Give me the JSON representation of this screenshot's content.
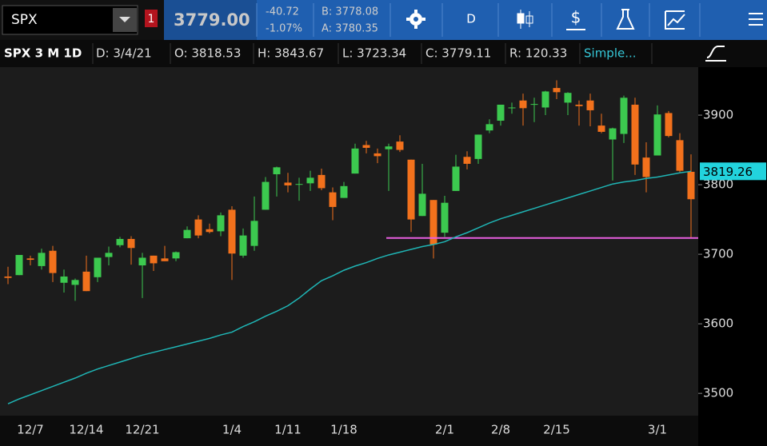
{
  "toolbar": {
    "symbol": "SPX",
    "alert_count": "1",
    "last": "3779.00",
    "change": "-40.72",
    "change_pct": "-1.07%",
    "bid": "B: 3778.08",
    "ask": "A: 3780.35",
    "aggregation": "D"
  },
  "info_bar": {
    "title": "SPX 3 M 1D",
    "date": "D: 3/4/21",
    "open": "O: 3818.53",
    "high": "H: 3843.67",
    "low": "L: 3723.34",
    "close": "C: 3779.11",
    "range": "R: 120.33",
    "study": "Simple..."
  },
  "chart_data": {
    "type": "candlestick",
    "categories": [
      null,
      null,
      "12/7",
      null,
      null,
      null,
      null,
      "12/14",
      null,
      null,
      null,
      null,
      "12/21",
      null,
      null,
      null,
      null,
      null,
      null,
      null,
      "1/4",
      null,
      null,
      null,
      null,
      "1/11",
      null,
      null,
      null,
      null,
      "1/18",
      null,
      null,
      null,
      null,
      null,
      null,
      null,
      null,
      "2/1",
      null,
      null,
      null,
      null,
      "2/8",
      null,
      null,
      null,
      null,
      "2/15",
      null,
      null,
      null,
      null,
      null,
      null,
      null,
      null,
      "3/1",
      null,
      null,
      null
    ],
    "open": [
      3668,
      3670,
      3694,
      3683,
      3705,
      3659,
      3656,
      3675,
      3667,
      3696,
      3713,
      3722,
      3684,
      3698,
      3694,
      3694,
      3723,
      3750,
      3736,
      3733,
      3764,
      3698,
      3712,
      3764,
      3815,
      3803,
      3801,
      3802,
      3814,
      3789,
      3781,
      3816,
      3857,
      3845,
      3851,
      3862,
      3836,
      3755,
      3778,
      3731,
      3791,
      3840,
      3837,
      3878,
      3892,
      3910,
      3921,
      3916,
      3911,
      3939,
      3918,
      3915,
      3921,
      3885,
      3865,
      3873,
      3915,
      3839,
      3842,
      3903,
      3864,
      3818.53
    ],
    "high": [
      3682,
      3699,
      3698,
      3708,
      3712,
      3678,
      3665,
      3698,
      3695,
      3711,
      3725,
      3726,
      3702,
      3698,
      3712,
      3704,
      3740,
      3756,
      3744,
      3760,
      3769,
      3737,
      3783,
      3811,
      3826,
      3817,
      3810,
      3820,
      3823,
      3796,
      3804,
      3859,
      3863,
      3852,
      3859,
      3871,
      3836,
      3830,
      3778,
      3784,
      3843,
      3848,
      3872,
      3894,
      3915,
      3918,
      3931,
      3925,
      3935,
      3950,
      3933,
      3921,
      3931,
      3902,
      3882,
      3928,
      3925,
      3861,
      3914,
      3906,
      3874,
      3843.67
    ],
    "low": [
      3657,
      3670,
      3684,
      3678,
      3660,
      3645,
      3633,
      3647,
      3660,
      3684,
      3710,
      3685,
      3637,
      3676,
      3690,
      3690,
      3723,
      3723,
      3730,
      3726,
      3663,
      3695,
      3705,
      3764,
      3783,
      3789,
      3777,
      3791,
      3792,
      3749,
      3781,
      3816,
      3845,
      3831,
      3791,
      3847,
      3732,
      3755,
      3694,
      3725,
      3791,
      3822,
      3830,
      3874,
      3885,
      3902,
      3885,
      3890,
      3900,
      3923,
      3900,
      3885,
      3884,
      3874,
      3806,
      3860,
      3814,
      3789,
      3842,
      3868,
      3818,
      3723.34
    ],
    "close": [
      3666,
      3699,
      3692,
      3702,
      3673,
      3668,
      3663,
      3647,
      3695,
      3702,
      3722,
      3709,
      3695,
      3687,
      3690,
      3703,
      3735,
      3727,
      3732,
      3756,
      3701,
      3727,
      3748,
      3804,
      3825,
      3799,
      3801,
      3810,
      3795,
      3768,
      3798,
      3852,
      3853,
      3841,
      3855,
      3850,
      3750,
      3787,
      3714,
      3774,
      3826,
      3830,
      3872,
      3887,
      3915,
      3911,
      3910,
      3916,
      3934,
      3933,
      3932,
      3913,
      3907,
      3876,
      3881,
      3925,
      3829,
      3811,
      3901,
      3870,
      3820,
      3779.11
    ],
    "up_color": "#3cc94f",
    "down_color": "#f2711c",
    "series": [
      {
        "color": "#1fb5b5",
        "values": [
          3485,
          3492,
          3498,
          3504,
          3510,
          3516,
          3522,
          3529,
          3535,
          3540,
          3545,
          3550,
          3555,
          3559,
          3563,
          3567,
          3571,
          3575,
          3579,
          3584,
          3588,
          3596,
          3603,
          3611,
          3618,
          3626,
          3637,
          3650,
          3662,
          3669,
          3677,
          3683,
          3688,
          3694,
          3699,
          3703,
          3707,
          3711,
          3714,
          3718,
          3725,
          3731,
          3738,
          3745,
          3751,
          3756,
          3761,
          3766,
          3771,
          3776,
          3781,
          3786,
          3791,
          3796,
          3801,
          3804,
          3806,
          3809,
          3811,
          3814,
          3817,
          3819.26
        ]
      }
    ],
    "hline": {
      "value": 3723.34,
      "color": "#e85fe0"
    },
    "ylim": [
      3468,
      3969
    ],
    "yticks": [
      3500,
      3600,
      3700,
      3800,
      3900
    ]
  }
}
